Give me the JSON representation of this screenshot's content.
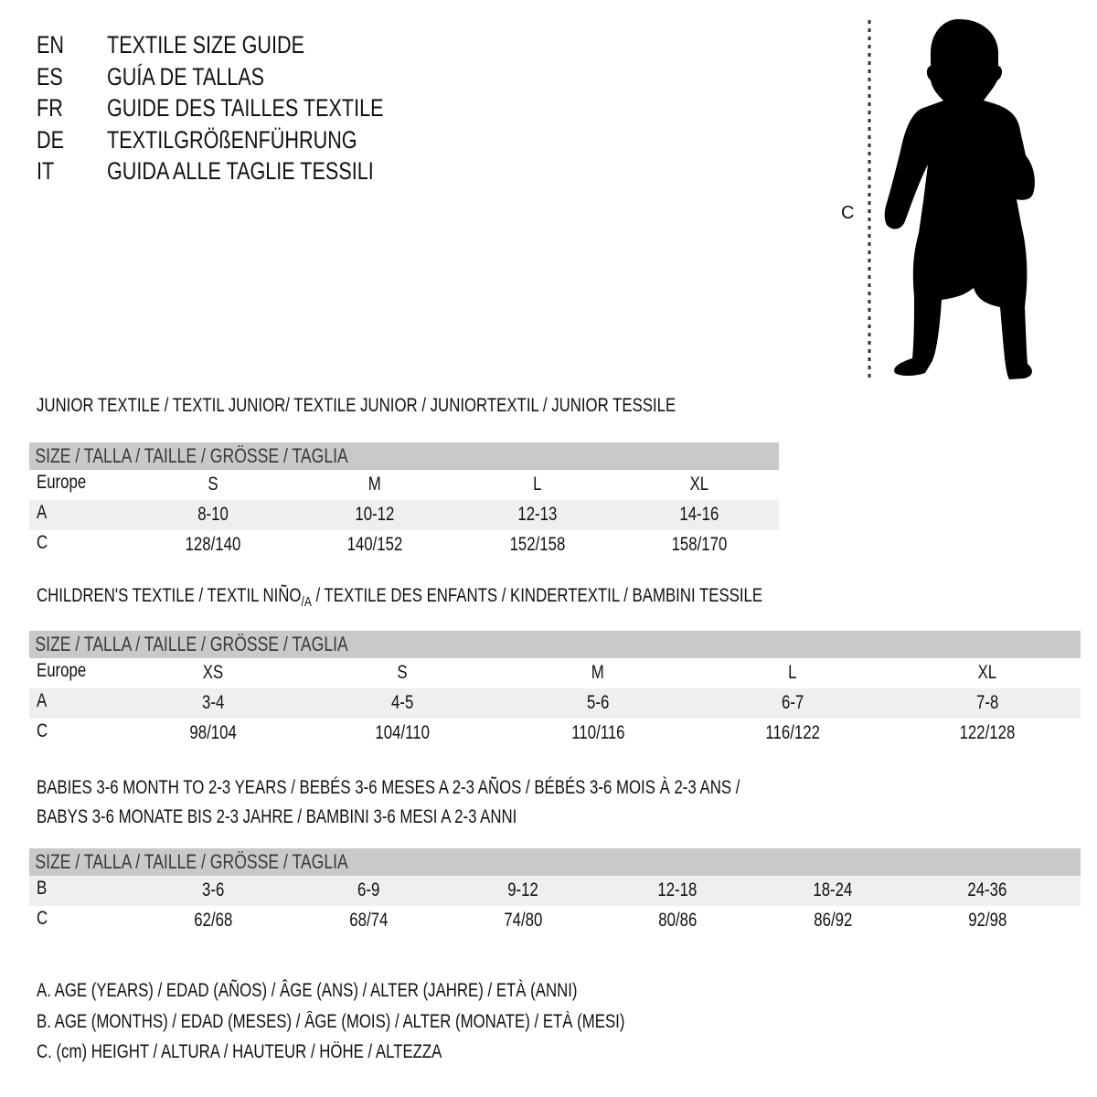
{
  "languages": [
    {
      "code": "EN",
      "title": "TEXTILE SIZE GUIDE"
    },
    {
      "code": "ES",
      "title": "GUÍA DE TALLAS"
    },
    {
      "code": "FR",
      "title": "GUIDE DES TAILLES TEXTILE"
    },
    {
      "code": "DE",
      "title": "TEXTILGRÖßENFÜHRUNG"
    },
    {
      "code": "IT",
      "title": "GUIDA ALLE TAGLIE TESSILI"
    }
  ],
  "figure": {
    "label": "C",
    "icon": "child-silhouette-icon"
  },
  "colors": {
    "header_bg": "#c9c9c9",
    "stripe_bg": "#efefef",
    "text": "#111111"
  },
  "junior": {
    "title": "JUNIOR TEXTILE / TEXTIL JUNIOR/ TEXTILE JUNIOR / JUNIORTEXTIL / JUNIOR TESSILE",
    "header": "SIZE / TALLA / TAILLE / GRÖSSE / TAGLIA",
    "rows": [
      {
        "label": "Europe",
        "values": [
          "S",
          "M",
          "L",
          "XL"
        ]
      },
      {
        "label": "A",
        "values": [
          "8-10",
          "10-12",
          "12-13",
          "14-16"
        ]
      },
      {
        "label": "C",
        "values": [
          "128/140",
          "140/152",
          "152/158",
          "158/170"
        ]
      }
    ]
  },
  "children": {
    "title_pre": "CHILDREN'S TEXTILE / TEXTIL NIÑO",
    "title_sub": "/A",
    "title_post": " / TEXTILE DES ENFANTS / KINDERTEXTIL / BAMBINI TESSILE",
    "header": "SIZE / TALLA / TAILLE / GRÖSSE / TAGLIA",
    "rows": [
      {
        "label": "Europe",
        "values": [
          "XS",
          "S",
          "M",
          "L",
          "XL"
        ]
      },
      {
        "label": "A",
        "values": [
          "3-4",
          "4-5",
          "5-6",
          "6-7",
          "7-8"
        ]
      },
      {
        "label": "C",
        "values": [
          "98/104",
          "104/110",
          "110/116",
          "116/122",
          "122/128"
        ]
      }
    ]
  },
  "babies": {
    "title_line1": "BABIES 3-6 MONTH TO 2-3 YEARS / BEBÉS 3-6 MESES A 2-3 AÑOS / BÉBÉS 3-6 MOIS À 2-3 ANS /",
    "title_line2": "BABYS 3-6 MONATE BIS 2-3 JAHRE / BAMBINI 3-6 MESI A 2-3 ANNI",
    "header": "SIZE / TALLA / TAILLE / GRÖSSE / TAGLIA",
    "rows": [
      {
        "label": "B",
        "values": [
          "3-6",
          "6-9",
          "9-12",
          "12-18",
          "18-24",
          "24-36"
        ]
      },
      {
        "label": "C",
        "values": [
          "62/68",
          "68/74",
          "74/80",
          "80/86",
          "86/92",
          "92/98"
        ]
      }
    ]
  },
  "legend": [
    "A. AGE (YEARS) / EDAD (AÑOS) / ÂGE (ANS) / ALTER (JAHRE) / ETÀ (ANNI)",
    "B. AGE (MONTHS) / EDAD (MESES) / ÂGE (MOIS) / ALTER (MONATE) / ETÀ (MESI)",
    "C. (cm) HEIGHT / ALTURA / HAUTEUR / HÖHE / ALTEZZA"
  ]
}
